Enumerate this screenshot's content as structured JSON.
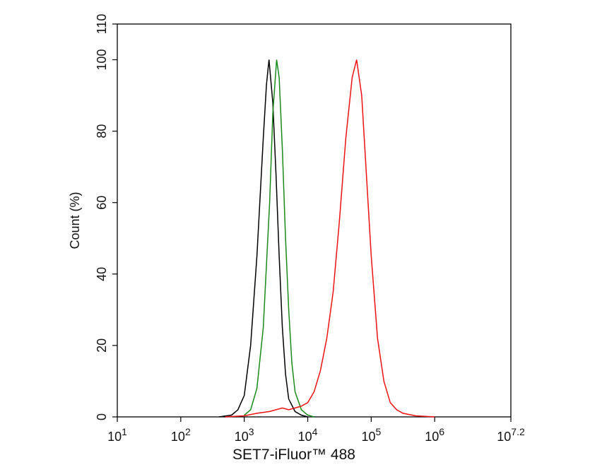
{
  "chart_data": {
    "type": "line",
    "x_label": "SET7-iFluor™ 488",
    "y_label": "Count  (%)",
    "xscale": "log",
    "xlim": [
      10,
      15848932
    ],
    "ylim": [
      0,
      110
    ],
    "xticks": [
      {
        "value": 10,
        "label": "10",
        "exp": "1"
      },
      {
        "value": 100,
        "label": "10",
        "exp": "2"
      },
      {
        "value": 1000,
        "label": "10",
        "exp": "3"
      },
      {
        "value": 10000,
        "label": "10",
        "exp": "4"
      },
      {
        "value": 100000,
        "label": "10",
        "exp": "5"
      },
      {
        "value": 1000000,
        "label": "10",
        "exp": "6"
      },
      {
        "value": 15848932,
        "label": "10",
        "exp": "7.2"
      }
    ],
    "yticks": [
      0,
      20,
      40,
      60,
      80,
      100,
      110
    ],
    "series": [
      {
        "color": "#000000",
        "x": [
          400,
          631,
          794,
          1000,
          1259,
          1585,
          1995,
          2239,
          2455,
          2818,
          3162,
          3548,
          3981,
          4467,
          5012,
          6310,
          7943,
          10000
        ],
        "values": [
          0,
          0.5,
          2,
          6,
          20,
          45,
          78,
          93,
          100,
          88,
          68,
          45,
          25,
          12,
          5,
          1.5,
          0.5,
          0
        ]
      },
      {
        "color": "#1a8a1a",
        "x": [
          1000,
          1259,
          1585,
          1995,
          2512,
          2818,
          3236,
          3548,
          3981,
          4467,
          5012,
          5623,
          6310,
          7943,
          10000,
          12589
        ],
        "values": [
          0.5,
          2,
          8,
          25,
          60,
          85,
          100,
          95,
          75,
          50,
          30,
          15,
          7,
          2,
          0.5,
          0
        ]
      },
      {
        "color": "#ee1111",
        "x": [
          501,
          1000,
          1585,
          2512,
          3162,
          3981,
          5012,
          6310,
          7943,
          10000,
          12589,
          15849,
          19953,
          25119,
          31623,
          39811,
          50119,
          58884,
          70795,
          79433,
          100000,
          125893,
          158489,
          199526,
          251189,
          316228,
          501187,
          1000000
        ],
        "values": [
          0,
          0.3,
          1,
          1.5,
          2,
          2.5,
          2,
          2.5,
          3,
          4,
          7,
          13,
          22,
          35,
          55,
          78,
          95,
          100,
          90,
          75,
          45,
          22,
          10,
          4,
          2,
          1,
          0.3,
          0
        ]
      }
    ]
  }
}
